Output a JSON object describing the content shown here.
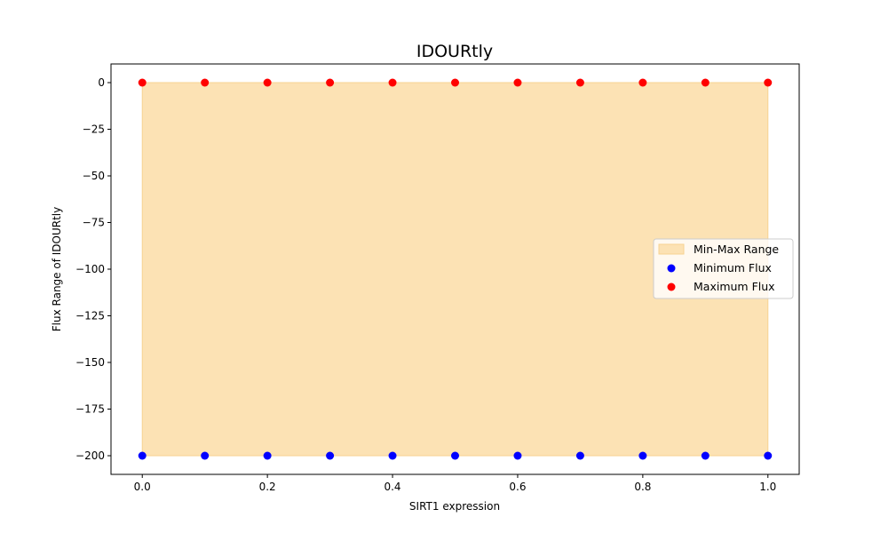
{
  "chart_data": {
    "type": "scatter",
    "title": "IDOURtly",
    "xlabel": "SIRT1 expression",
    "ylabel": "Flux Range of IDOURtly",
    "xlim": [
      -0.05,
      1.05
    ],
    "ylim": [
      -210,
      10
    ],
    "x": [
      0.0,
      0.1,
      0.2,
      0.3,
      0.4,
      0.5,
      0.6,
      0.7,
      0.8,
      0.9,
      1.0
    ],
    "x_ticks": [
      0.0,
      0.2,
      0.4,
      0.6,
      0.8,
      1.0
    ],
    "x_tick_labels": [
      "0.0",
      "0.2",
      "0.4",
      "0.6",
      "0.8",
      "1.0"
    ],
    "y_ticks": [
      0,
      -25,
      -50,
      -75,
      -100,
      -125,
      -150,
      -175,
      -200
    ],
    "y_tick_labels": [
      "0",
      "−25",
      "−50",
      "−75",
      "−100",
      "−125",
      "−150",
      "−175",
      "−200"
    ],
    "range_band": {
      "name": "Min-Max Range",
      "color": "#fce2b4",
      "edge_color": "#f7d392"
    },
    "series": [
      {
        "name": "Minimum Flux",
        "color": "#0000ff",
        "values": [
          -200,
          -200,
          -200,
          -200,
          -200,
          -200,
          -200,
          -200,
          -200,
          -200,
          -200
        ]
      },
      {
        "name": "Maximum Flux",
        "color": "#ff0000",
        "values": [
          0,
          0,
          0,
          0,
          0,
          0,
          0,
          0,
          0,
          0,
          0
        ]
      }
    ],
    "legend": {
      "placement": "center-right",
      "entries": [
        "Min-Max Range",
        "Minimum Flux",
        "Maximum Flux"
      ]
    },
    "grid": false
  }
}
